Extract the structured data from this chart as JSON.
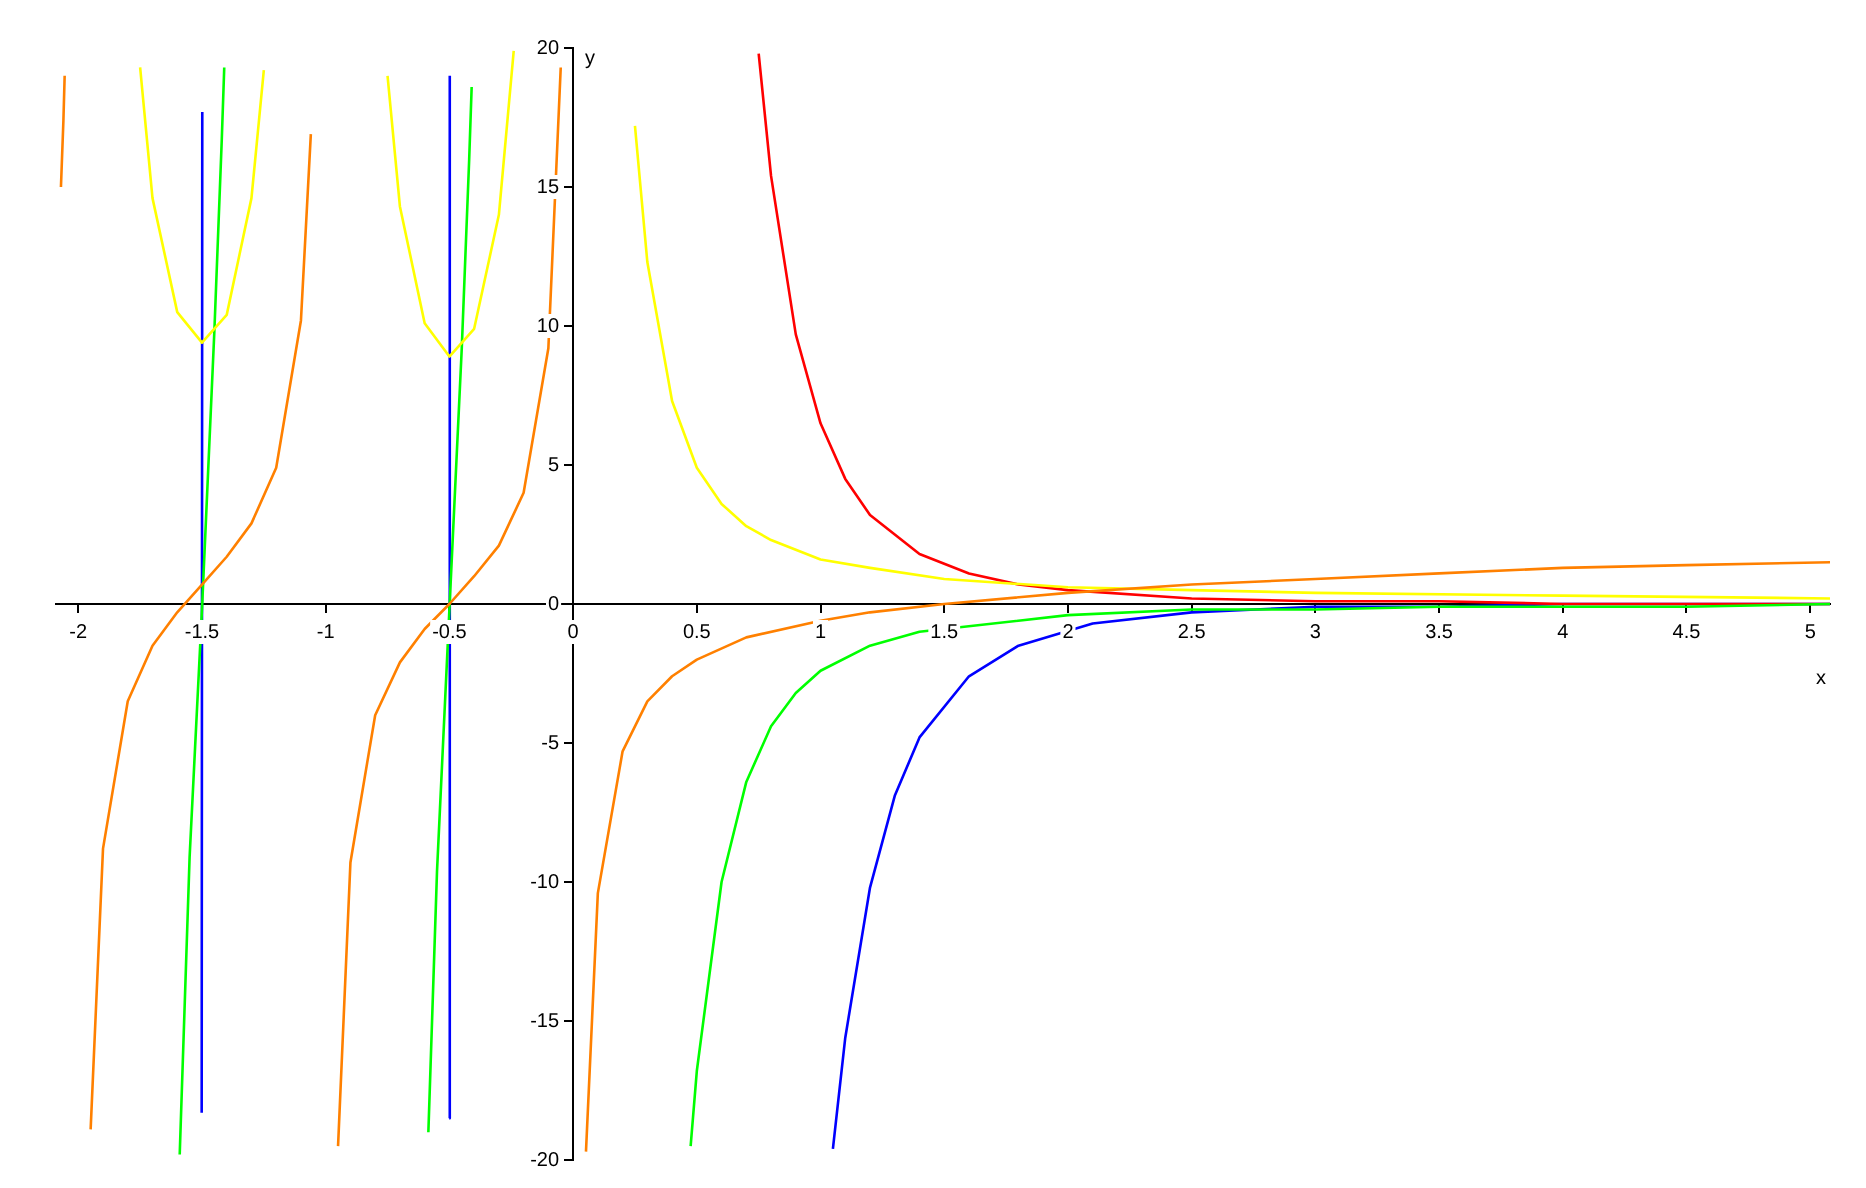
{
  "chart_data": {
    "type": "line",
    "xlabel": "x",
    "ylabel": "y",
    "xlim": [
      -2.09,
      5.08
    ],
    "ylim": [
      -20,
      20
    ],
    "xticks": [
      -2,
      -1.5,
      -1,
      -0.5,
      0,
      0.5,
      1,
      1.5,
      2,
      2.5,
      3,
      3.5,
      4,
      4.5,
      5
    ],
    "yticks": [
      -20,
      -15,
      -10,
      -5,
      0,
      5,
      10,
      15,
      20
    ],
    "grid": false,
    "legend": false,
    "marker": "none",
    "line_style": "solid",
    "series": [
      {
        "color": "#ff8000",
        "x": [
          -2.07,
          -2.06,
          -2.055,
          null,
          -1.95,
          -1.9,
          -1.8,
          -1.7,
          -1.6,
          -1.5,
          -1.4,
          -1.3,
          -1.2,
          -1.1,
          -1.06,
          null,
          -0.95,
          -0.9,
          -0.8,
          -0.7,
          -0.6,
          -0.5,
          -0.4,
          -0.3,
          -0.2,
          -0.1,
          -0.05,
          null,
          0.052,
          0.1,
          0.2,
          0.3,
          0.4,
          0.5,
          0.7,
          1,
          1.2,
          1.5,
          2,
          2.5,
          3,
          3.5,
          4,
          4.5,
          5.08
        ],
        "values": [
          15,
          17.4,
          19,
          null,
          -18.9,
          -8.8,
          -3.5,
          -1.5,
          -0.3,
          0.7,
          1.7,
          2.9,
          4.9,
          10.2,
          16.9,
          null,
          -19.5,
          -9.3,
          -4,
          -2.1,
          -0.9,
          0,
          1,
          2.1,
          4,
          9.2,
          19.3,
          null,
          -19.7,
          -10.4,
          -5.3,
          -3.5,
          -2.6,
          -2,
          -1.2,
          -0.6,
          -0.3,
          0,
          0.4,
          0.7,
          0.9,
          1.1,
          1.3,
          1.4,
          1.5
        ]
      },
      {
        "color": "#ffff00",
        "x": [
          -1.75,
          -1.7,
          -1.6,
          -1.5,
          -1.4,
          -1.3,
          -1.25,
          null,
          -0.75,
          -0.7,
          -0.6,
          -0.5,
          -0.4,
          -0.3,
          -0.24,
          null,
          0.25,
          0.3,
          0.4,
          0.5,
          0.6,
          0.7,
          0.8,
          1,
          1.2,
          1.5,
          2,
          2.5,
          3,
          4,
          5.08
        ],
        "values": [
          19.3,
          14.6,
          10.5,
          9.4,
          10.4,
          14.6,
          19.2,
          null,
          19,
          14.3,
          10.1,
          8.9,
          9.9,
          14,
          19.9,
          null,
          17.2,
          12.3,
          7.3,
          4.9,
          3.6,
          2.8,
          2.3,
          1.6,
          1.3,
          0.9,
          0.6,
          0.5,
          0.4,
          0.3,
          0.2
        ]
      },
      {
        "color": "#00ff00",
        "x": [
          -1.59,
          -1.55,
          -1.5,
          -1.45,
          -1.42,
          -1.41,
          null,
          -0.585,
          -0.55,
          -0.45,
          -0.42,
          -0.41,
          null,
          0.475,
          0.5,
          0.6,
          0.7,
          0.8,
          0.9,
          1,
          1.2,
          1.4,
          2,
          2.5,
          3,
          3.5,
          4,
          4.5,
          5.08
        ],
        "values": [
          -19.8,
          -9.1,
          -0.2,
          9.8,
          16.7,
          19.3,
          null,
          -19,
          -9.6,
          9.2,
          16,
          18.6,
          null,
          -19.5,
          -16.8,
          -10,
          -6.4,
          -4.4,
          -3.2,
          -2.4,
          -1.5,
          -1,
          -0.4,
          -0.2,
          -0.2,
          -0.1,
          -0.1,
          -0.1,
          0
        ]
      },
      {
        "color": "#ff0000",
        "x": [
          0.75,
          0.8,
          0.9,
          1,
          1.1,
          1.2,
          1.4,
          1.6,
          1.8,
          2,
          2.5,
          3,
          3.5,
          4,
          4.5,
          5.08
        ],
        "values": [
          19.8,
          15.4,
          9.7,
          6.5,
          4.5,
          3.2,
          1.8,
          1.1,
          0.7,
          0.5,
          0.2,
          0.1,
          0.1,
          0,
          0,
          0
        ]
      },
      {
        "color": "#0000ff",
        "x": [
          -1.5012,
          -1.4988,
          null,
          -0.501,
          -0.4985,
          null,
          1.05,
          1.1,
          1.2,
          1.3,
          1.4,
          1.6,
          1.8,
          2.1,
          2.5,
          3,
          3.5,
          4,
          4.5,
          5.08
        ],
        "values": [
          -18.3,
          17.7,
          null,
          -18.5,
          19,
          null,
          -19.6,
          -15.6,
          -10.2,
          -6.9,
          -4.8,
          -2.6,
          -1.5,
          -0.7,
          -0.3,
          -0.1,
          -0.1,
          0,
          0,
          0
        ]
      }
    ]
  }
}
